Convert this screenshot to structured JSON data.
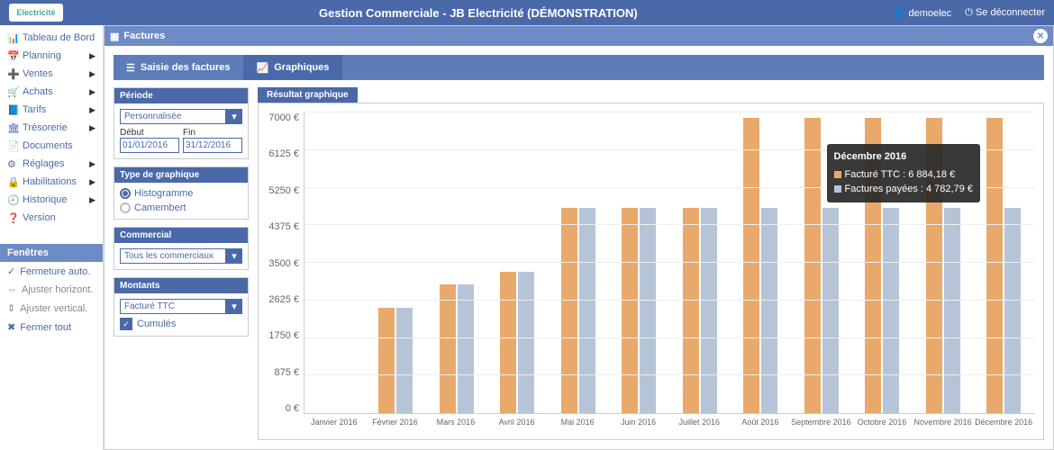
{
  "app": {
    "logo_text": "Electricité",
    "title": "Gestion Commerciale - JB Electricité (DÉMONSTRATION)",
    "user": "demoelec",
    "logout": "Se déconnecter"
  },
  "menu": [
    {
      "icon": "📊",
      "label": "Tableau de Bord",
      "arrow": false
    },
    {
      "icon": "📅",
      "label": "Planning",
      "arrow": true
    },
    {
      "icon": "➕",
      "label": "Ventes",
      "arrow": true
    },
    {
      "icon": "🛒",
      "label": "Achats",
      "arrow": true
    },
    {
      "icon": "📘",
      "label": "Tarifs",
      "arrow": true
    },
    {
      "icon": "🏛",
      "label": "Trésorerie",
      "arrow": true
    },
    {
      "icon": "📄",
      "label": "Documents",
      "arrow": false
    },
    {
      "icon": "⚙",
      "label": "Réglages",
      "arrow": true
    },
    {
      "icon": "🔒",
      "label": "Habilitations",
      "arrow": true
    },
    {
      "icon": "🕘",
      "label": "Historique",
      "arrow": true
    },
    {
      "icon": "❓",
      "label": "Version",
      "arrow": false
    }
  ],
  "windows": {
    "header": "Fenêtres",
    "items": [
      {
        "icon": "✓",
        "label": "Fermeture auto.",
        "active": true
      },
      {
        "icon": "⇔",
        "label": "Ajuster horizont.",
        "active": false
      },
      {
        "icon": "⇕",
        "label": "Ajuster vertical.",
        "active": false
      },
      {
        "icon": "✖",
        "label": "Fermer tout",
        "active": true
      }
    ]
  },
  "window": {
    "title": "Factures",
    "tabs": [
      {
        "icon": "☰",
        "label": "Saisie des factures",
        "active": false
      },
      {
        "icon": "📈",
        "label": "Graphiques",
        "active": true
      }
    ]
  },
  "period": {
    "header": "Période",
    "preset": "Personnalisée",
    "start_label": "Début",
    "start": "01/01/2016",
    "end_label": "Fin",
    "end": "31/12/2016"
  },
  "chart_type": {
    "header": "Type de graphique",
    "options": [
      {
        "label": "Histogramme",
        "checked": true
      },
      {
        "label": "Camembert",
        "checked": false
      }
    ]
  },
  "commercial": {
    "header": "Commercial",
    "value": "Tous les commerciaux"
  },
  "amounts": {
    "header": "Montants",
    "value": "Facturé TTC",
    "cumulative": "Cumulés"
  },
  "chart": {
    "header": "Résultat graphique",
    "type": "bar",
    "ylim": [
      0,
      7000
    ],
    "ytick_step": 875,
    "y_suffix": " €",
    "colors": {
      "series1": "#e8a96b",
      "series2": "#b6c4d8",
      "grid": "#eeeeee",
      "axis": "#cccccc"
    },
    "categories": [
      "Janvier 2016",
      "Février 2016",
      "Mars 2016",
      "Avril 2016",
      "Mai 2016",
      "Juin 2016",
      "Juillet 2016",
      "Août 2016",
      "Septembre 2016",
      "Octobre 2016",
      "Novembre 2016",
      "Décembre 2016"
    ],
    "series": [
      {
        "name": "Facturé TTC",
        "color": "#e8a96b",
        "values": [
          0,
          2450,
          3000,
          3300,
          4782,
          4782,
          4782,
          6884,
          6884,
          6884,
          6884,
          6884
        ]
      },
      {
        "name": "Factures payées",
        "color": "#b6c4d8",
        "values": [
          0,
          2450,
          3000,
          3300,
          4782,
          4782,
          4782,
          4782,
          4782,
          4782,
          4782,
          4782
        ]
      }
    ],
    "tooltip": {
      "title": "Décembre 2016",
      "rows": [
        {
          "swatch": "#e8a96b",
          "label": "Facturé TTC : 6 884,18 €"
        },
        {
          "swatch": "#b6c4d8",
          "label": "Factures payées : 4 782,79 €"
        }
      ]
    }
  }
}
